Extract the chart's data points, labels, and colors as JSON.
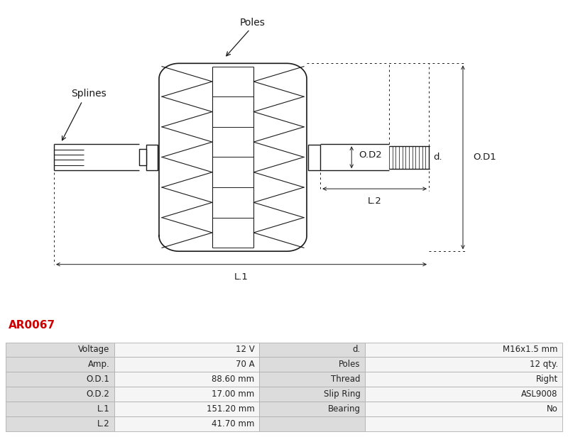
{
  "title_code": "AR0067",
  "title_color": "#cc0000",
  "bg_color": "#ffffff",
  "line_color": "#1a1a1a",
  "table_rows": [
    [
      "Voltage",
      "12 V",
      "d.",
      "M16x1.5 mm"
    ],
    [
      "Amp.",
      "70 A",
      "Poles",
      "12 qty."
    ],
    [
      "O.D.1",
      "88.60 mm",
      "Thread",
      "Right"
    ],
    [
      "O.D.2",
      "17.00 mm",
      "Slip Ring",
      "ASL9008"
    ],
    [
      "L.1",
      "151.20 mm",
      "Bearing",
      "No"
    ],
    [
      "L.2",
      "41.70 mm",
      "",
      ""
    ]
  ],
  "labels": {
    "splines": "Splines",
    "poles": "Poles",
    "od1": "O.D1",
    "od2": "O.D2",
    "d": "d.",
    "l1": "L.1",
    "l2": "L.2"
  }
}
